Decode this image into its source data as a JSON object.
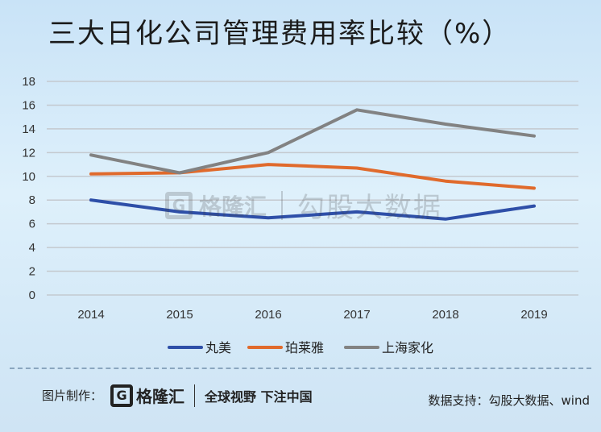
{
  "title": "三大日化公司管理费用率比较（%）",
  "watermark": {
    "logo_glyph": "G",
    "brand": "格隆汇",
    "sub": "勾股大数据"
  },
  "footer": {
    "credit_label": "图片制作：",
    "logo_glyph": "G",
    "logo_text": "格隆汇",
    "slogan": "全球视野 下注中国",
    "source": "数据支持：勾股大数据、wind"
  },
  "chart_data": {
    "type": "line",
    "title": "三大日化公司管理费用率比较（%）",
    "xlabel": "",
    "ylabel": "",
    "categories": [
      "2014",
      "2015",
      "2016",
      "2017",
      "2018",
      "2019"
    ],
    "ylim": [
      0,
      18
    ],
    "yticks": [
      0,
      2,
      4,
      6,
      8,
      10,
      12,
      14,
      16,
      18
    ],
    "grid": true,
    "legend_position": "bottom",
    "series": [
      {
        "name": "丸美",
        "color": "#2e4fa8",
        "values": [
          8.0,
          7.0,
          6.5,
          7.0,
          6.4,
          7.5
        ]
      },
      {
        "name": "珀莱雅",
        "color": "#e06a2c",
        "values": [
          10.2,
          10.3,
          11.0,
          10.7,
          9.6,
          9.0
        ]
      },
      {
        "name": "上海家化",
        "color": "#828282",
        "values": [
          11.8,
          10.3,
          12.0,
          15.6,
          14.4,
          13.4
        ]
      }
    ]
  }
}
